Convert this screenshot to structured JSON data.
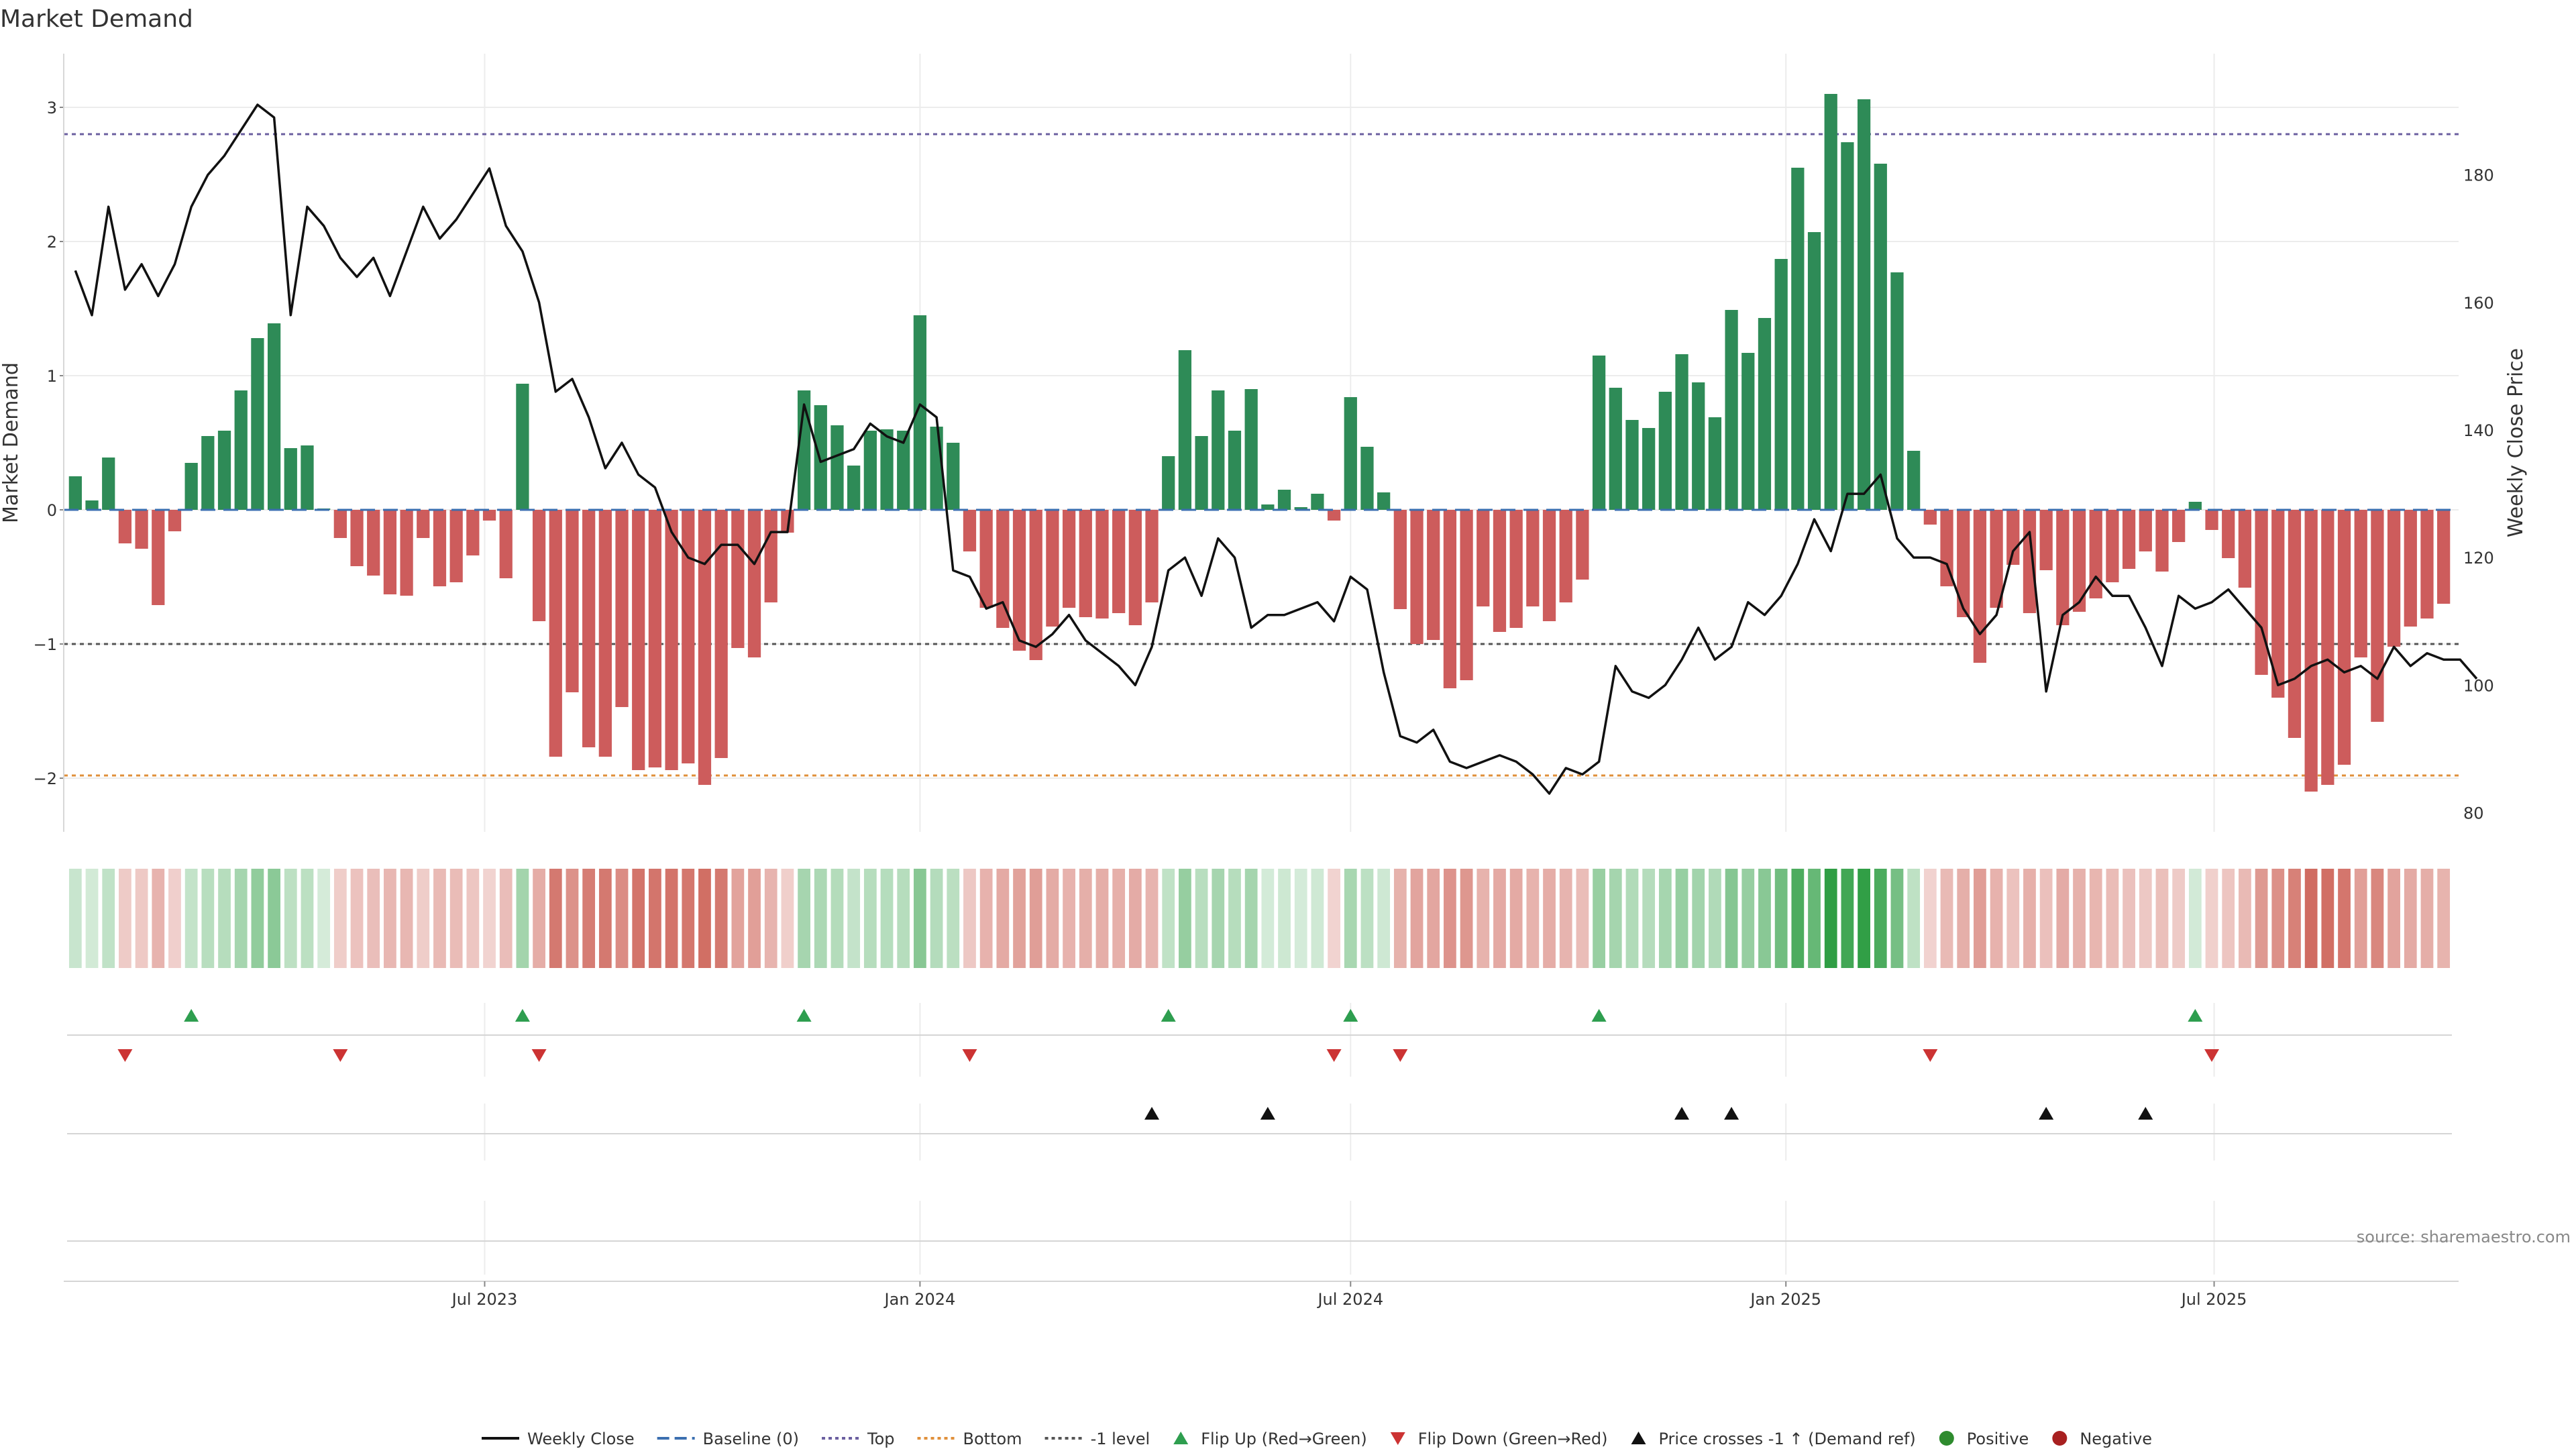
{
  "chart_data": {
    "type": "bar",
    "title": "Market Demand",
    "ylabel": "Market Demand",
    "ylabel_right": "Weekly Close Price",
    "ylim": [
      -2.4,
      3.4
    ],
    "ylim_right": [
      77,
      199
    ],
    "yticks": [
      -2,
      -1,
      0,
      1,
      2,
      3
    ],
    "yticks_right": [
      80,
      100,
      120,
      140,
      160,
      180
    ],
    "x_start": "2023-01-09",
    "x_step_days": 7,
    "x_ticks": [
      {
        "label": "Jul 2023",
        "date": "2023-07-01"
      },
      {
        "label": "Jan 2024",
        "date": "2024-01-01"
      },
      {
        "label": "Jul 2024",
        "date": "2024-07-01"
      },
      {
        "label": "Jan 2025",
        "date": "2025-01-01"
      },
      {
        "label": "Jul 2025",
        "date": "2025-07-01"
      }
    ],
    "reference_lines": [
      {
        "name": "Baseline (0)",
        "value": 0,
        "color": "#3b6fb0"
      },
      {
        "name": "Top",
        "value": 2.8,
        "color": "#6b5fa0"
      },
      {
        "name": "Bottom",
        "value": -1.98,
        "color": "#e0903b"
      },
      {
        "name": "-1 level",
        "value": -1.0,
        "color": "#555555"
      }
    ],
    "series": [
      {
        "name": "Market Demand",
        "values": [
          0.25,
          0.07,
          0.39,
          -0.25,
          -0.29,
          -0.71,
          -0.16,
          0.35,
          0.55,
          0.59,
          0.89,
          1.28,
          1.39,
          0.46,
          0.48,
          0.01,
          -0.21,
          -0.42,
          -0.49,
          -0.63,
          -0.64,
          -0.21,
          -0.57,
          -0.54,
          -0.34,
          -0.08,
          -0.51,
          0.94,
          -0.83,
          -1.84,
          -1.36,
          -1.77,
          -1.84,
          -1.47,
          -1.94,
          -1.92,
          -1.94,
          -1.89,
          -2.05,
          -1.85,
          -1.03,
          -1.1,
          -0.69,
          -0.17,
          0.89,
          0.78,
          0.63,
          0.33,
          0.59,
          0.6,
          0.59,
          1.45,
          0.62,
          0.5,
          -0.31,
          -0.73,
          -0.88,
          -1.05,
          -1.12,
          -0.87,
          -0.73,
          -0.8,
          -0.81,
          -0.77,
          -0.86,
          -0.69,
          0.4,
          1.19,
          0.55,
          0.89,
          0.59,
          0.9,
          0.04,
          0.15,
          0.02,
          0.12,
          -0.08,
          0.84,
          0.47,
          0.13,
          -0.74,
          -1.0,
          -0.97,
          -1.33,
          -1.27,
          -0.72,
          -0.91,
          -0.88,
          -0.72,
          -0.83,
          -0.69,
          -0.52,
          1.15,
          0.91,
          0.67,
          0.61,
          0.88,
          1.16,
          0.95,
          0.69,
          1.49,
          1.17,
          1.43,
          1.87,
          2.55,
          2.07,
          3.1,
          2.74,
          3.06,
          2.58,
          1.77,
          0.44,
          -0.11,
          -0.57,
          -0.8,
          -1.14,
          -0.73,
          -0.41,
          -0.77,
          -0.45,
          -0.86,
          -0.76,
          -0.66,
          -0.54,
          -0.44,
          -0.31,
          -0.46,
          -0.24,
          0.06,
          -0.15,
          -0.36,
          -0.58,
          -1.23,
          -1.4,
          -1.7,
          -2.1,
          -2.05,
          -1.9,
          -1.1,
          -1.58,
          -1.02,
          -0.87,
          -0.81,
          -0.7
        ]
      },
      {
        "name": "Weekly Close",
        "values": [
          165,
          158,
          175,
          162,
          166,
          161,
          166,
          175,
          180,
          183,
          187,
          191,
          189,
          158,
          175,
          172,
          167,
          164,
          167,
          161,
          168,
          175,
          170,
          173,
          177,
          181,
          172,
          168,
          160,
          146,
          148,
          142,
          134,
          138,
          133,
          131,
          124,
          120,
          119,
          122,
          122,
          119,
          124,
          124,
          144,
          135,
          136,
          137,
          141,
          139,
          138,
          144,
          142,
          118,
          117,
          112,
          113,
          107,
          106,
          108,
          111,
          107,
          105,
          103,
          100,
          106,
          118,
          120,
          114,
          123,
          120,
          109,
          111,
          111,
          112,
          113,
          110,
          117,
          115,
          102,
          92,
          91,
          93,
          88,
          87,
          88,
          89,
          88,
          86,
          83,
          87,
          86,
          88,
          103,
          99,
          98,
          100,
          104,
          109,
          104,
          106,
          113,
          111,
          114,
          119,
          126,
          121,
          130,
          130,
          133,
          123,
          120,
          120,
          119,
          112,
          108,
          111,
          121,
          124,
          99,
          111,
          113,
          117,
          114,
          114,
          109,
          103,
          114,
          112,
          113,
          115,
          112,
          109,
          100,
          101,
          103,
          104,
          102,
          103,
          101,
          106,
          103,
          105,
          104,
          104,
          101
        ],
        "color": "#111111"
      }
    ],
    "flip_up_weeks": [
      7,
      27,
      44,
      66,
      77,
      92,
      128
    ],
    "flip_down_weeks": [
      3,
      16,
      28,
      54,
      76,
      80,
      112,
      129
    ],
    "price_cross_weeks": [
      65,
      72,
      97,
      100,
      119,
      125
    ],
    "legend": [
      {
        "label": "Weekly Close",
        "kind": "line",
        "color": "#111111"
      },
      {
        "label": "Baseline (0)",
        "kind": "dash",
        "color": "#3b6fb0"
      },
      {
        "label": "Top",
        "kind": "dot",
        "color": "#6b5fa0"
      },
      {
        "label": "Bottom",
        "kind": "dot",
        "color": "#e0903b"
      },
      {
        "label": "-1 level",
        "kind": "dot",
        "color": "#555555"
      },
      {
        "label": "Flip Up (Red→Green)",
        "kind": "tri-up",
        "color": "#2e9e4f"
      },
      {
        "label": "Flip Down (Green→Red)",
        "kind": "tri-down",
        "color": "#cc3333"
      },
      {
        "label": "Price crosses -1 ↑ (Demand ref)",
        "kind": "tri-up",
        "color": "#111111"
      },
      {
        "label": "Positive",
        "kind": "circle",
        "color": "#2e8b2e"
      },
      {
        "label": "Negative",
        "kind": "circle",
        "color": "#a82020"
      }
    ],
    "colors": {
      "positive_bar": "#2e8b57",
      "negative_bar": "#cd5c5c",
      "heat_positive": "#2f9e44",
      "heat_negative": "#c0392b"
    },
    "source": "source: sharemaestro.com"
  }
}
